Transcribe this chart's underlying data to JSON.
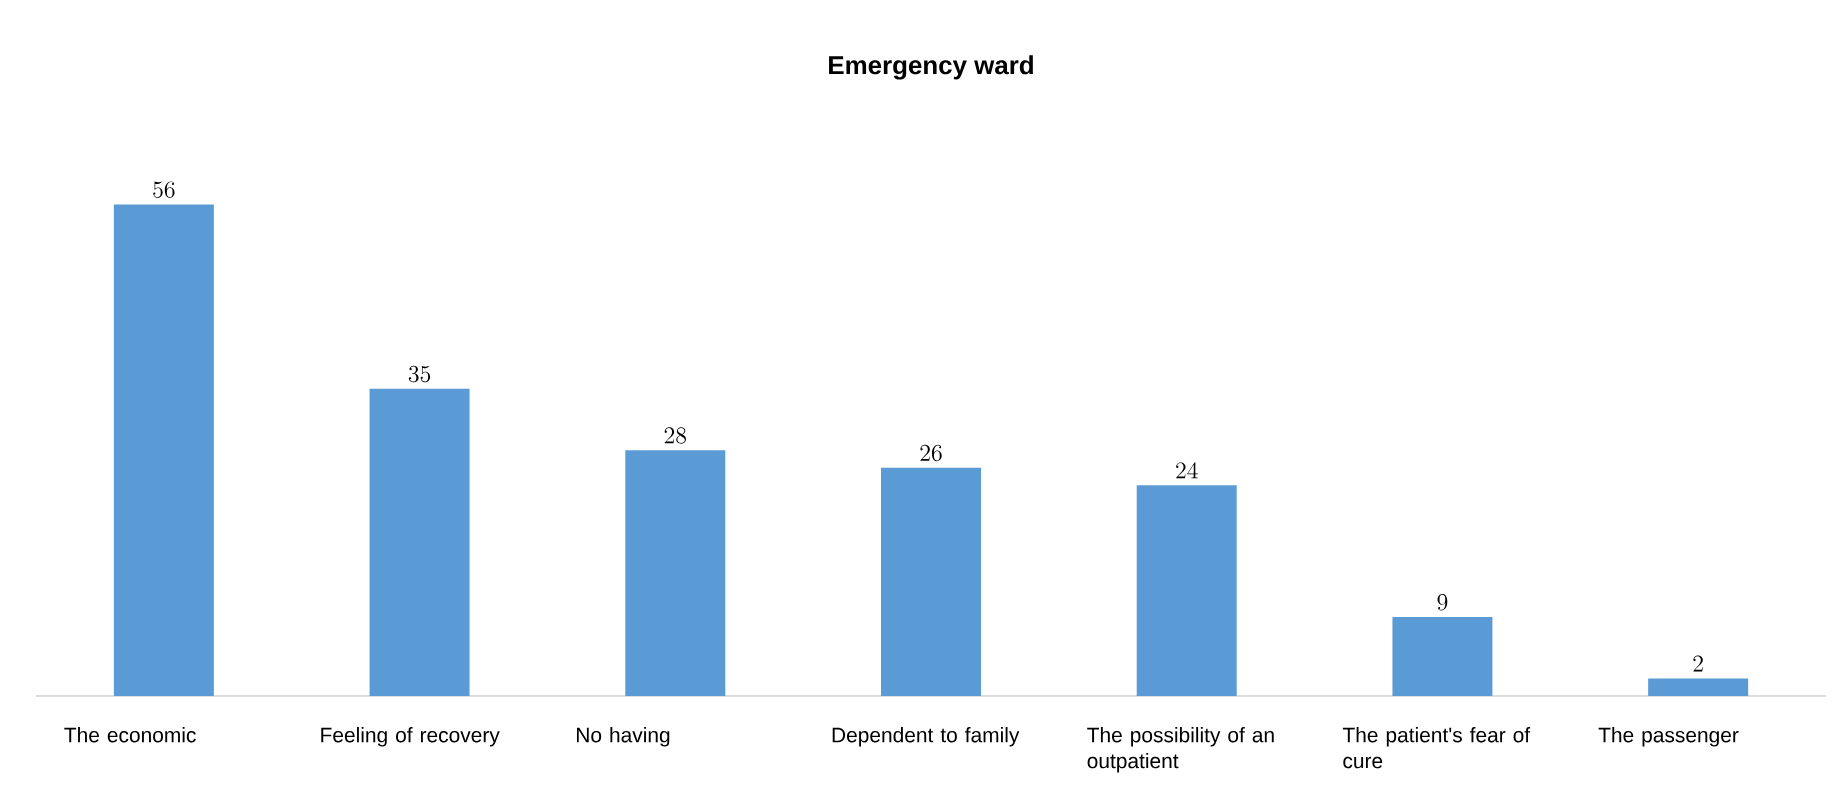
{
  "chart_data": {
    "type": "bar",
    "title": "Emergency ward",
    "categories": [
      "The economic",
      "Feeling of recovery",
      "No having",
      "Dependent to family",
      "The possibility of an outpatient",
      "The patient's fear of cure",
      "The passenger"
    ],
    "values": [
      56,
      35,
      28,
      26,
      24,
      9,
      2
    ],
    "color": "#5b9bd5",
    "data_labels": true
  }
}
